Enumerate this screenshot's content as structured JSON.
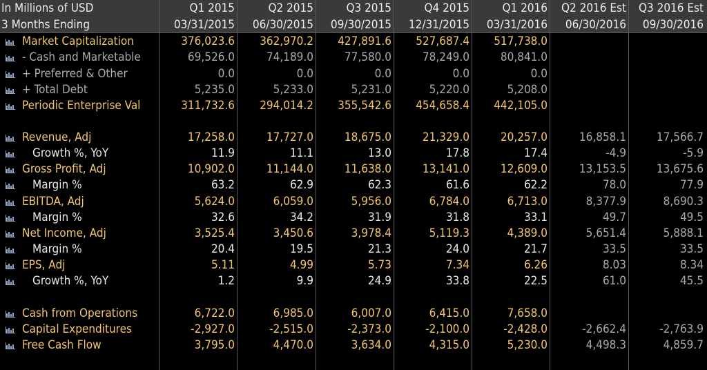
{
  "header": {
    "title": "In Millions of USD",
    "subtitle": "3 Months Ending",
    "columns": [
      {
        "period": "Q1 2015",
        "date": "03/31/2015"
      },
      {
        "period": "Q2 2015",
        "date": "06/30/2015"
      },
      {
        "period": "Q3 2015",
        "date": "09/30/2015"
      },
      {
        "period": "Q4 2015",
        "date": "12/31/2015"
      },
      {
        "period": "Q1 2016",
        "date": "03/31/2016"
      },
      {
        "period": "Q2 2016 Est",
        "date": "06/30/2016"
      },
      {
        "period": "Q3 2016 Est",
        "date": "09/30/2016"
      }
    ]
  },
  "colors": {
    "header_bg": "#3a3a3a",
    "label_yellow": "#f2c66b",
    "label_grey": "#aaaaaa",
    "value_white": "#e8e8e8",
    "icon_blue": "#8fa6c9",
    "background": "#000000"
  },
  "icon": "bar-chart-icon",
  "rows": [
    {
      "label": "Market Capitalization",
      "values": [
        "376,023.6",
        "362,970.2",
        "427,891.6",
        "527,687.4",
        "517,738.0",
        "",
        ""
      ]
    },
    {
      "label": "- Cash and Marketable",
      "values": [
        "69,526.0",
        "74,189.0",
        "77,580.0",
        "78,249.0",
        "80,841.0",
        "",
        ""
      ]
    },
    {
      "label": "+ Preferred & Other",
      "values": [
        "0.0",
        "0.0",
        "0.0",
        "0.0",
        "0.0",
        "",
        ""
      ]
    },
    {
      "label": "+ Total Debt",
      "values": [
        "5,235.0",
        "5,233.0",
        "5,231.0",
        "5,220.0",
        "5,208.0",
        "",
        ""
      ]
    },
    {
      "label": "Periodic Enterprise Val",
      "values": [
        "311,732.6",
        "294,014.2",
        "355,542.6",
        "454,658.4",
        "442,105.0",
        "",
        ""
      ]
    },
    {
      "label": "Revenue, Adj",
      "values": [
        "17,258.0",
        "17,727.0",
        "18,675.0",
        "21,329.0",
        "20,257.0",
        "16,858.1",
        "17,566.7"
      ]
    },
    {
      "label": "Growth %, YoY",
      "values": [
        "11.9",
        "11.1",
        "13.0",
        "17.8",
        "17.4",
        "-4.9",
        "-5.9"
      ]
    },
    {
      "label": "Gross Profit, Adj",
      "values": [
        "10,902.0",
        "11,144.0",
        "11,638.0",
        "13,141.0",
        "12,609.0",
        "13,153.5",
        "13,675.6"
      ]
    },
    {
      "label": "Margin %",
      "values": [
        "63.2",
        "62.9",
        "62.3",
        "61.6",
        "62.2",
        "78.0",
        "77.9"
      ]
    },
    {
      "label": "EBITDA, Adj",
      "values": [
        "5,624.0",
        "6,059.0",
        "5,956.0",
        "6,784.0",
        "6,713.0",
        "8,377.9",
        "8,690.3"
      ]
    },
    {
      "label": "Margin %",
      "values": [
        "32.6",
        "34.2",
        "31.9",
        "31.8",
        "33.1",
        "49.7",
        "49.5"
      ]
    },
    {
      "label": "Net Income, Adj",
      "values": [
        "3,525.4",
        "3,450.6",
        "3,978.4",
        "5,119.3",
        "4,389.0",
        "5,651.4",
        "5,888.1"
      ]
    },
    {
      "label": "Margin %",
      "values": [
        "20.4",
        "19.5",
        "21.3",
        "24.0",
        "21.7",
        "33.5",
        "33.5"
      ]
    },
    {
      "label": "EPS, Adj",
      "values": [
        "5.11",
        "4.99",
        "5.73",
        "7.34",
        "6.26",
        "8.03",
        "8.34"
      ]
    },
    {
      "label": "Growth %, YoY",
      "values": [
        "1.2",
        "9.9",
        "24.9",
        "33.8",
        "22.5",
        "61.0",
        "45.5"
      ]
    },
    {
      "label": "Cash from Operations",
      "values": [
        "6,722.0",
        "6,985.0",
        "6,007.0",
        "6,415.0",
        "7,658.0",
        "",
        ""
      ]
    },
    {
      "label": "Capital Expenditures",
      "values": [
        "-2,927.0",
        "-2,515.0",
        "-2,373.0",
        "-2,100.0",
        "-2,428.0",
        "-2,662.4",
        "-2,763.9"
      ]
    },
    {
      "label": "Free Cash Flow",
      "values": [
        "3,795.0",
        "4,470.0",
        "3,634.0",
        "4,315.0",
        "5,230.0",
        "4,498.3",
        "4,859.7"
      ]
    }
  ]
}
